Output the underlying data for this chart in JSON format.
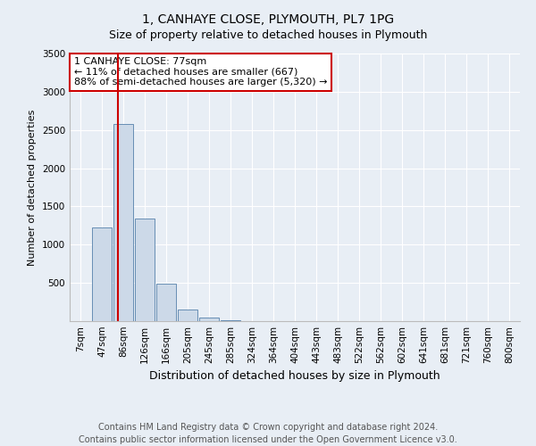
{
  "title": "1, CANHAYE CLOSE, PLYMOUTH, PL7 1PG",
  "subtitle": "Size of property relative to detached houses in Plymouth",
  "xlabel": "Distribution of detached houses by size in Plymouth",
  "ylabel": "Number of detached properties",
  "bar_labels": [
    "7sqm",
    "47sqm",
    "86sqm",
    "126sqm",
    "166sqm",
    "205sqm",
    "245sqm",
    "285sqm",
    "324sqm",
    "364sqm",
    "404sqm",
    "443sqm",
    "483sqm",
    "522sqm",
    "562sqm",
    "602sqm",
    "641sqm",
    "681sqm",
    "721sqm",
    "760sqm",
    "800sqm"
  ],
  "bar_values": [
    5,
    1230,
    2580,
    1340,
    490,
    155,
    50,
    10,
    5,
    2,
    2,
    0,
    0,
    0,
    0,
    0,
    0,
    0,
    0,
    0,
    0
  ],
  "bar_color": "#ccd9e8",
  "bar_edge_color": "#5580aa",
  "vline_color": "#cc0000",
  "vline_pos": 1.75,
  "annotation_text": "1 CANHAYE CLOSE: 77sqm\n← 11% of detached houses are smaller (667)\n88% of semi-detached houses are larger (5,320) →",
  "annotation_box_facecolor": "#ffffff",
  "annotation_box_edgecolor": "#cc0000",
  "ylim": [
    0,
    3500
  ],
  "yticks": [
    0,
    500,
    1000,
    1500,
    2000,
    2500,
    3000,
    3500
  ],
  "bg_color": "#e8eef5",
  "plot_bg_color": "#e8eef5",
  "footer1": "Contains HM Land Registry data © Crown copyright and database right 2024.",
  "footer2": "Contains public sector information licensed under the Open Government Licence v3.0.",
  "title_fontsize": 10,
  "subtitle_fontsize": 9,
  "xlabel_fontsize": 9,
  "ylabel_fontsize": 8,
  "tick_fontsize": 7.5,
  "annotation_fontsize": 8,
  "footer_fontsize": 7
}
